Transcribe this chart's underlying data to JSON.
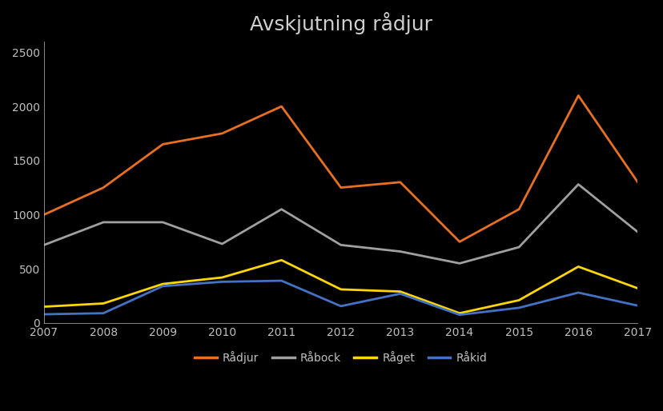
{
  "title": "Avskjutning rådjur",
  "years": [
    2007,
    2008,
    2009,
    2010,
    2011,
    2012,
    2013,
    2014,
    2015,
    2016,
    2017
  ],
  "radjur": [
    1000,
    1250,
    1650,
    1750,
    2000,
    1250,
    1300,
    750,
    1050,
    2100,
    1300
  ],
  "rabock": [
    720,
    930,
    930,
    730,
    1050,
    720,
    660,
    550,
    700,
    1280,
    840
  ],
  "raget": [
    150,
    180,
    360,
    420,
    580,
    310,
    290,
    90,
    210,
    520,
    320
  ],
  "rakid": [
    80,
    90,
    340,
    380,
    390,
    155,
    270,
    75,
    140,
    280,
    160
  ],
  "series_colors": {
    "radjur": "#E87020",
    "rabock": "#A0A0A0",
    "raget": "#FFD700",
    "rakid": "#4472C4"
  },
  "series_labels": {
    "radjur": "Rådjur",
    "rabock": "Råbock",
    "raget": "Råget",
    "rakid": "Råkid"
  },
  "background_color": "#000000",
  "text_color": "#C0C0C0",
  "title_color": "#D0D0D0",
  "ylim": [
    0,
    2600
  ],
  "yticks": [
    0,
    500,
    1000,
    1500,
    2000,
    2500
  ],
  "title_fontsize": 18,
  "legend_fontsize": 10,
  "tick_fontsize": 10,
  "line_width": 2.0
}
